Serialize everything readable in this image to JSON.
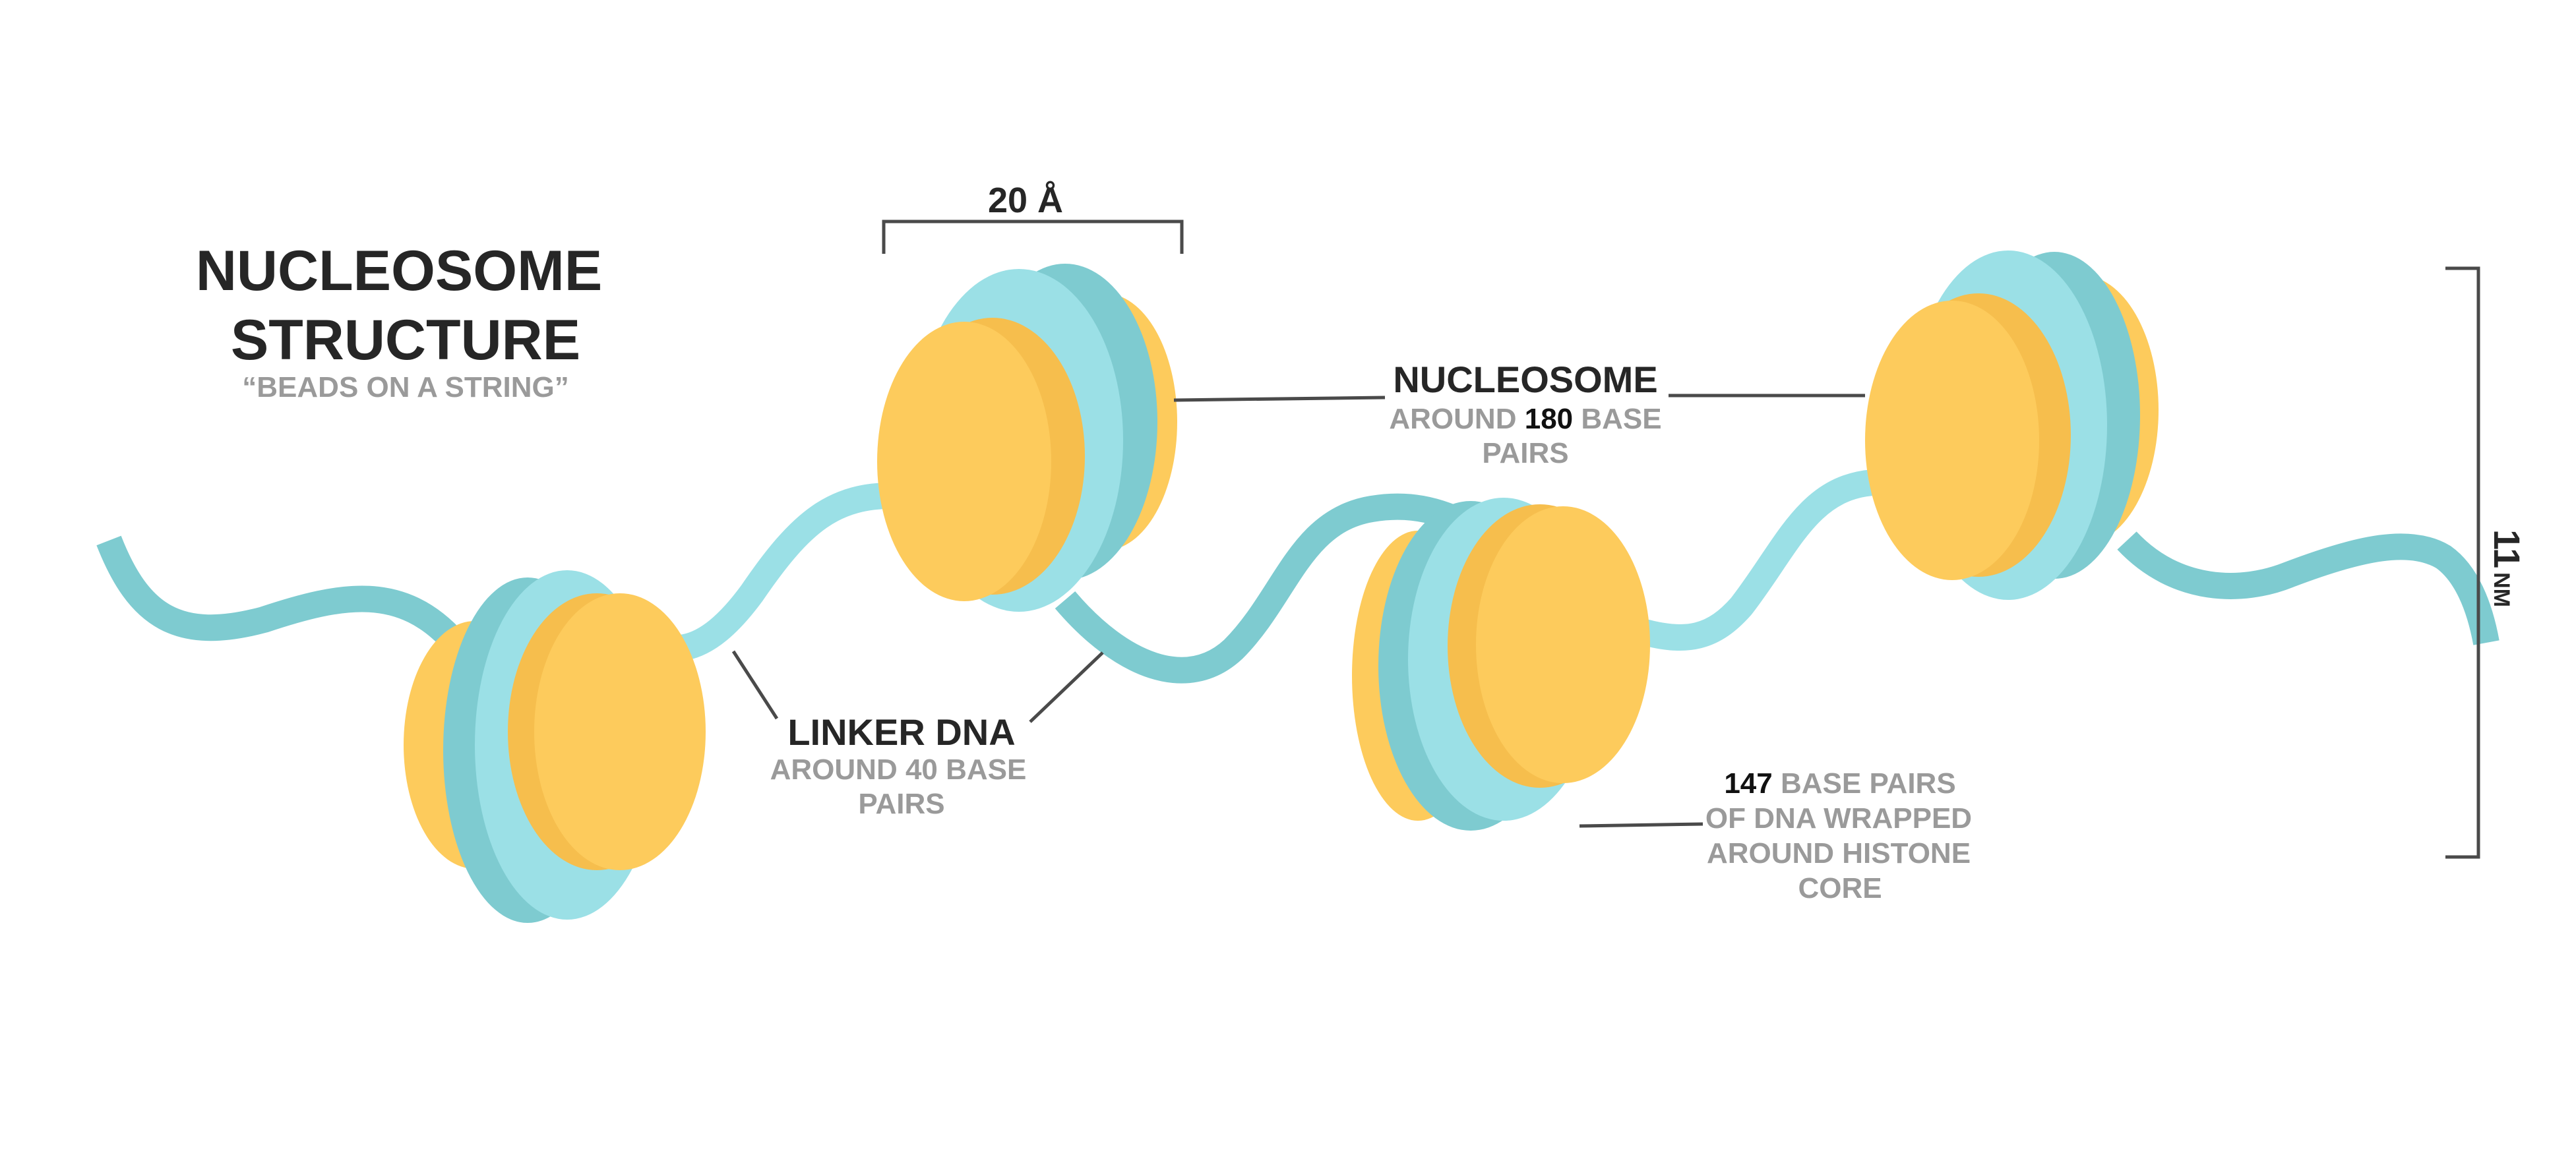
{
  "title": {
    "line1": "NUCLEOSOME",
    "line2": "STRUCTURE",
    "subtitle": "“BEADS ON A STRING”"
  },
  "scale": {
    "width_label": "20 Å",
    "height_number": "11",
    "height_unit": "NM"
  },
  "labels": {
    "nucleosome": {
      "title": "NUCLEOSOME",
      "line1_prefix": "AROUND",
      "line1_number": "180",
      "line1_suffix": "BASE",
      "line2": "PAIRS"
    },
    "linker_dna": {
      "title": "LINKER DNA",
      "line1": "AROUND 40 BASE",
      "line2": "PAIRS"
    },
    "wrapped_dna": {
      "line1_number": "147",
      "line1_suffix": "BASE PAIRS",
      "line2": "OF DNA WRAPPED",
      "line3": "AROUND HISTONE",
      "line4": "CORE"
    }
  },
  "colors": {
    "dna_dark": "#7ecbd0",
    "dna_light": "#9be0e6",
    "histone_light": "#fdcb5c",
    "histone_dark": "#f6be4d",
    "text_dark": "#262626",
    "text_grey": "#9a9a9a",
    "leader_line": "#4a4a4a"
  }
}
